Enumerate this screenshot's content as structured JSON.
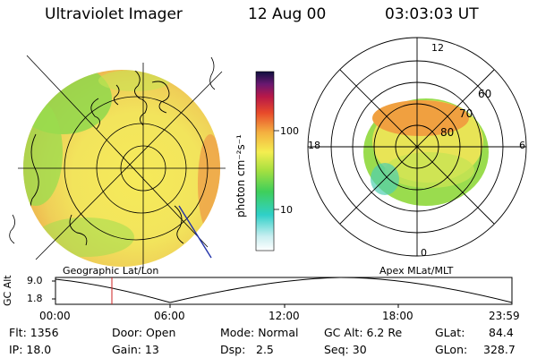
{
  "header": {
    "instrument": "Ultraviolet Imager",
    "date": "12 Aug 00",
    "time": "03:03:03 UT"
  },
  "left_panel": {
    "caption": "Geographic Lat/Lon"
  },
  "right_panel": {
    "caption": "Apex MLat/MLT",
    "mlt_labels": {
      "top": "12",
      "left": "18",
      "right": "6",
      "bottom": "0"
    },
    "mlat_labels": [
      "60",
      "70",
      "80"
    ]
  },
  "colorbar": {
    "unit_label": "photon cm⁻²s⁻¹",
    "ticks": [
      "100",
      "10"
    ],
    "scale": "log"
  },
  "timeline": {
    "ylabel": "GC Alt",
    "y_ticks": [
      "9.0",
      "1.8"
    ],
    "x_ticks": [
      "00:00",
      "06:00",
      "12:00",
      "18:00",
      "23:59"
    ],
    "marker_time": "03:03"
  },
  "info": {
    "flt": "Flt: 1356",
    "ip": "IP: 18.0",
    "door": "Door: Open",
    "gain": "Gain: 13",
    "mode": "Mode: Normal",
    "dsp_label": "Dsp:",
    "dsp_value": "2.5",
    "gc_alt": "GC Alt: 6.2 Re",
    "seq": "Seq: 30",
    "glat_label": "GLat:",
    "glat_value": "84.4",
    "glon_label": "GLon:",
    "glon_value": "328.7"
  },
  "colors": {
    "aurora_low": "#7fd44a",
    "aurora_mid": "#f5e64a",
    "aurora_high": "#f0a040",
    "marker": "#cc2222",
    "orbit_line": "#2233aa"
  }
}
